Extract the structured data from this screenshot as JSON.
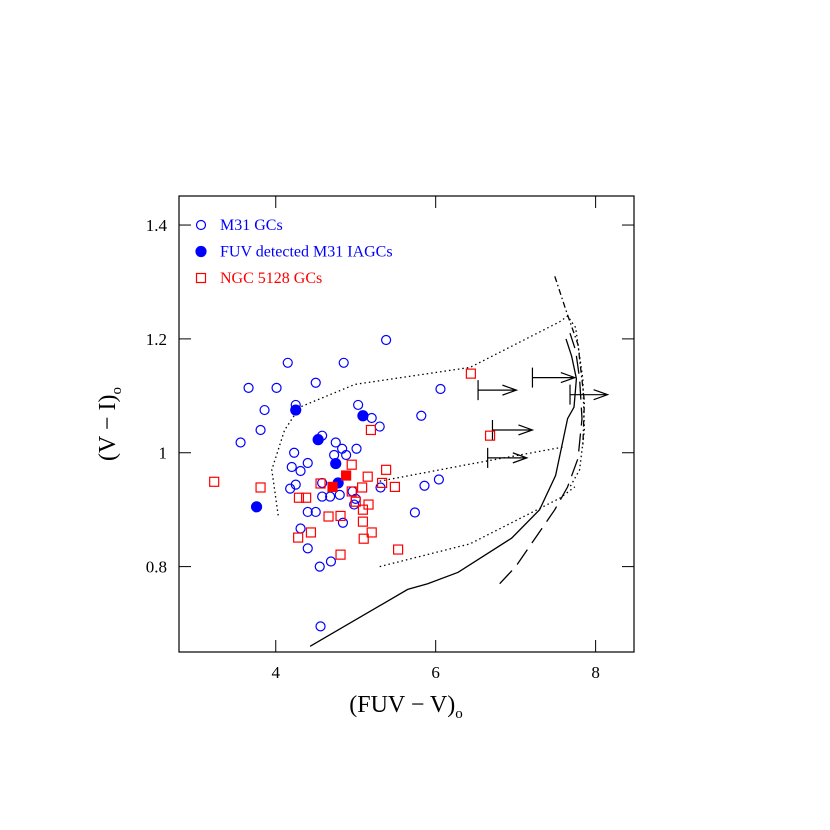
{
  "chart_data": {
    "type": "scatter",
    "xlabel": "(FUV − V)",
    "xlabel_sub": "o",
    "ylabel": "(V − I)",
    "ylabel_sub": "o",
    "xlim": [
      2.79,
      8.48
    ],
    "ylim": [
      0.65,
      1.451
    ],
    "xticks": [
      4,
      6,
      8
    ],
    "yticks": [
      0.8,
      1,
      1.2,
      1.4
    ],
    "legend": "upper left",
    "series": [
      {
        "name": "M31 GCs",
        "color": "#0000ff",
        "marker": "circle",
        "filled": false,
        "x": [
          5.38,
          4.15,
          4.85,
          4.01,
          3.66,
          4.5,
          3.86,
          4.25,
          4.25,
          5.03,
          3.81,
          3.56,
          4.58,
          5.2,
          5.82,
          6.06,
          5.3,
          4.75,
          4.83,
          5.01,
          4.23,
          4.73,
          4.88,
          4.4,
          4.2,
          4.31,
          4.58,
          4.25,
          4.18,
          4.68,
          4.8,
          4.96,
          5.0,
          4.98,
          4.4,
          4.5,
          4.31,
          4.4,
          4.69,
          4.55,
          4.56,
          5.74,
          5.86,
          6.04,
          5.31,
          4.58,
          4.84
        ],
        "y": [
          1.198,
          1.158,
          1.158,
          1.114,
          1.114,
          1.123,
          1.075,
          1.084,
          1.075,
          1.084,
          1.04,
          1.018,
          1.03,
          1.061,
          1.065,
          1.112,
          1.046,
          1.018,
          1.007,
          1.007,
          1.0,
          0.996,
          0.996,
          0.982,
          0.975,
          0.968,
          0.947,
          0.944,
          0.937,
          0.923,
          0.926,
          0.932,
          0.919,
          0.909,
          0.896,
          0.896,
          0.867,
          0.832,
          0.809,
          0.8,
          0.695,
          0.895,
          0.942,
          0.953,
          0.939,
          0.923,
          0.877
        ]
      },
      {
        "name": "FUV detected M31 IAGCs",
        "color": "#0000ff",
        "marker": "circle",
        "filled": true,
        "x": [
          4.25,
          4.53,
          5.09,
          4.75,
          4.78,
          3.76
        ],
        "y": [
          1.075,
          1.023,
          1.065,
          0.981,
          0.947,
          0.905
        ]
      },
      {
        "name": "NGC 5128 GCs",
        "color": "#ff0000",
        "marker": "square",
        "filled": false,
        "x": [
          3.23,
          3.81,
          6.44,
          6.68,
          4.29,
          4.38,
          4.28,
          4.44,
          4.56,
          4.66,
          4.81,
          4.95,
          4.95,
          5.08,
          5.15,
          5.19,
          5.09,
          5.09,
          5.1,
          5.2,
          5.16,
          5.33,
          5.38,
          5.49,
          5.53,
          4.81,
          5.0
        ],
        "y": [
          0.949,
          0.939,
          1.139,
          1.03,
          0.921,
          0.921,
          0.851,
          0.86,
          0.946,
          0.888,
          0.889,
          0.979,
          0.932,
          0.939,
          0.958,
          1.04,
          0.9,
          0.879,
          0.849,
          0.86,
          0.909,
          0.947,
          0.97,
          0.94,
          0.83,
          0.821,
          0.914
        ]
      },
      {
        "color": "#ff0000",
        "marker": "square",
        "filled": true,
        "x": [
          4.71,
          4.88
        ],
        "y": [
          0.94,
          0.96
        ]
      }
    ],
    "lines": [
      {
        "style": "solid",
        "x": [
          4.43,
          5.65,
          5.9,
          6.28,
          6.95,
          7.3,
          7.5,
          7.59,
          7.65,
          7.73,
          7.76,
          7.7,
          7.63
        ],
        "y": [
          0.66,
          0.76,
          0.77,
          0.79,
          0.85,
          0.9,
          0.96,
          1.02,
          1.06,
          1.08,
          1.13,
          1.17,
          1.2
        ]
      },
      {
        "style": "dashed",
        "x": [
          6.8,
          7.0,
          7.49,
          7.65,
          7.78,
          7.83,
          7.8,
          7.75,
          7.68
        ],
        "y": [
          0.77,
          0.8,
          0.9,
          0.94,
          0.99,
          1.06,
          1.13,
          1.18,
          1.21
        ]
      },
      {
        "style": "dotted",
        "x": [
          4.03,
          3.95,
          4.11,
          4.3,
          4.99,
          6.43,
          7.55,
          7.65,
          7.75,
          7.84,
          7.86,
          7.8,
          7.68
        ],
        "y": [
          0.89,
          0.97,
          1.04,
          1.08,
          1.12,
          1.15,
          1.23,
          1.24,
          1.22,
          1.13,
          1.04,
          0.97,
          0.94
        ]
      },
      {
        "style": "dotted",
        "x": [
          5.3,
          6.43,
          7.55,
          7.74
        ],
        "y": [
          0.8,
          0.84,
          0.92,
          0.94
        ]
      },
      {
        "style": "dotted",
        "x": [
          5.3,
          6.43,
          7.59
        ],
        "y": [
          0.95,
          0.98,
          1.01
        ]
      },
      {
        "style": "dashdot",
        "x": [
          7.49,
          7.63,
          7.78,
          7.86,
          7.84
        ],
        "y": [
          1.31,
          1.25,
          1.19,
          1.09,
          1.01
        ]
      }
    ],
    "arrows": {
      "x": [
        6.53,
        7.21,
        7.68,
        6.71,
        6.65
      ],
      "x_end": [
        7.01,
        7.74,
        8.15,
        7.21,
        7.14
      ],
      "y": [
        1.11,
        1.132,
        1.102,
        1.04,
        0.991
      ]
    }
  }
}
